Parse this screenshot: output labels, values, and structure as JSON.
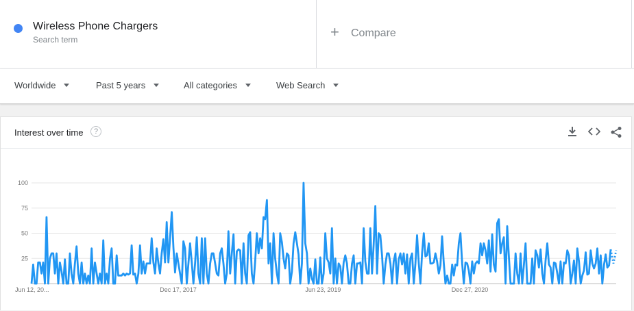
{
  "search_term": {
    "name": "Wireless Phone Chargers",
    "subtitle": "Search term",
    "color": "#4285f4"
  },
  "compare": {
    "plus": "+",
    "label": "Compare"
  },
  "filters": [
    {
      "label": "Worldwide"
    },
    {
      "label": "Past 5 years"
    },
    {
      "label": "All categories"
    },
    {
      "label": "Web Search"
    }
  ],
  "card": {
    "title": "Interest over time",
    "help_glyph": "?"
  },
  "chart_data": {
    "type": "line",
    "title": "Interest over time",
    "ylim": [
      0,
      100
    ],
    "y_ticks": [
      25,
      50,
      75,
      100
    ],
    "x_tick_labels": [
      "Jun 12, 20...",
      "Dec 17, 2017",
      "Jun 23, 2019",
      "Dec 27, 2020"
    ],
    "x_tick_indices": [
      0,
      79,
      157,
      236
    ],
    "grid": true,
    "series": [
      {
        "color": "#2196f3",
        "partial_points": 2,
        "values": [
          0,
          19,
          0,
          0,
          21,
          21,
          10,
          21,
          0,
          66,
          0,
          25,
          30,
          30,
          10,
          30,
          0,
          21,
          12,
          0,
          24,
          0,
          0,
          30,
          10,
          0,
          20,
          37,
          10,
          0,
          21,
          0,
          10,
          0,
          8,
          0,
          35,
          0,
          21,
          10,
          0,
          10,
          0,
          43,
          0,
          10,
          0,
          25,
          35,
          0,
          0,
          28,
          8,
          8,
          8,
          10,
          8,
          10,
          9,
          10,
          38,
          9,
          10,
          0,
          10,
          38,
          10,
          22,
          10,
          20,
          20,
          20,
          45,
          21,
          10,
          35,
          20,
          10,
          30,
          44,
          21,
          61,
          21,
          45,
          71,
          36,
          11,
          30,
          20,
          10,
          0,
          42,
          35,
          0,
          20,
          40,
          21,
          0,
          20,
          46,
          10,
          0,
          45,
          0,
          45,
          10,
          0,
          20,
          30,
          30,
          20,
          10,
          8,
          30,
          35,
          20,
          0,
          10,
          52,
          10,
          30,
          49,
          0,
          32,
          34,
          33,
          0,
          40,
          10,
          0,
          48,
          51,
          10,
          0,
          22,
          50,
          30,
          45,
          35,
          66,
          64,
          83,
          20,
          40,
          0,
          50,
          25,
          10,
          0,
          50,
          41,
          25,
          15,
          30,
          28,
          0,
          12,
          40,
          51,
          40,
          29,
          0,
          20,
          100,
          40,
          30,
          0,
          15,
          5,
          0,
          24,
          0,
          0,
          26,
          0,
          10,
          50,
          25,
          21,
          10,
          55,
          0,
          25,
          0,
          20,
          17,
          0,
          21,
          28,
          20,
          0,
          0,
          20,
          28,
          0,
          20,
          20,
          21,
          0,
          55,
          22,
          10,
          10,
          55,
          10,
          39,
          77,
          10,
          50,
          48,
          28,
          0,
          19,
          30,
          30,
          20,
          0,
          22,
          30,
          0,
          24,
          30,
          19,
          30,
          10,
          29,
          0,
          25,
          30,
          0,
          20,
          48,
          20,
          0,
          30,
          50,
          27,
          28,
          40,
          20,
          20,
          21,
          30,
          22,
          10,
          18,
          47,
          20,
          0,
          8,
          0,
          0,
          19,
          8,
          19,
          18,
          40,
          50,
          20,
          0,
          21,
          20,
          13,
          0,
          22,
          10,
          20,
          22,
          20,
          40,
          28,
          40,
          33,
          20,
          43,
          12,
          49,
          19,
          12,
          60,
          64,
          30,
          40,
          46,
          0,
          57,
          26,
          0,
          0,
          0,
          30,
          10,
          0,
          30,
          0,
          19,
          40,
          0,
          0,
          0,
          25,
          0,
          33,
          28,
          16,
          34,
          10,
          0,
          23,
          40,
          19,
          16,
          0,
          21,
          20,
          10,
          0,
          22,
          0,
          21,
          20,
          33,
          28,
          0,
          10,
          23,
          0,
          35,
          22,
          0,
          8,
          13,
          31,
          9,
          10,
          33,
          20,
          15,
          20,
          35,
          10,
          28,
          0,
          19,
          29,
          16,
          18,
          34
        ],
        "projected_values": [
          20,
          33
        ]
      }
    ]
  }
}
